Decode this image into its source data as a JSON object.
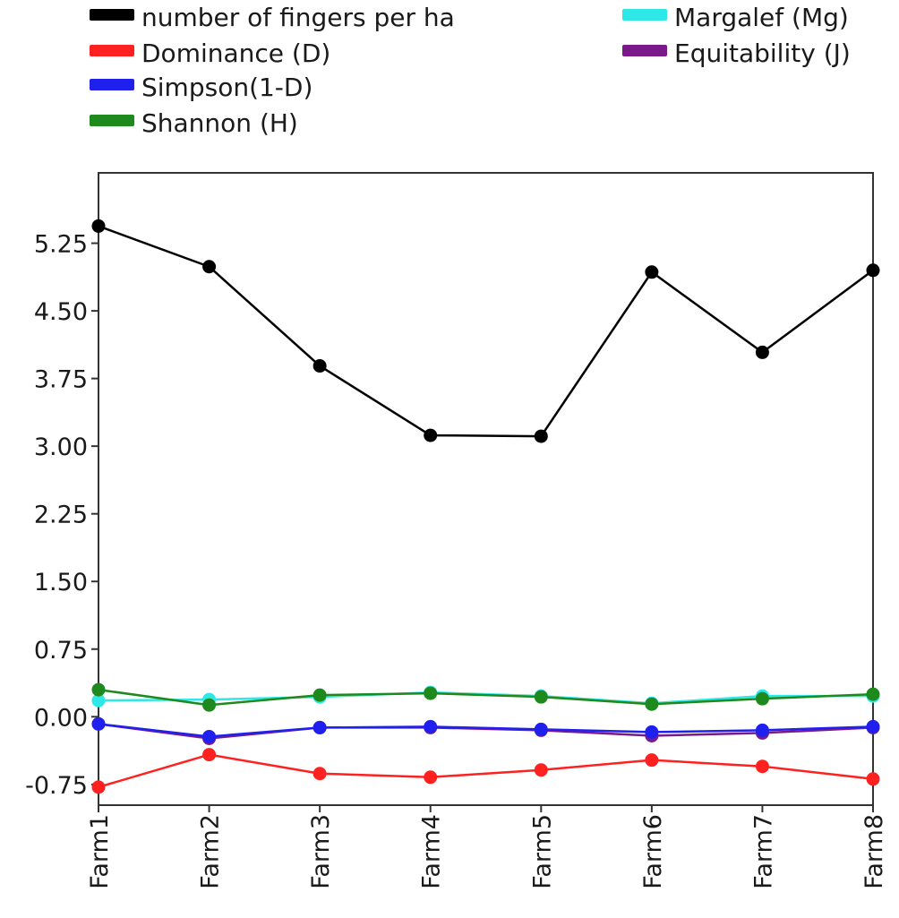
{
  "chart_data": {
    "type": "line",
    "title": "",
    "xlabel": "",
    "ylabel": "",
    "categories": [
      "Farm1",
      "Farm2",
      "Farm3",
      "Farm4",
      "Farm5",
      "Farm6",
      "Farm7",
      "Farm8"
    ],
    "ylim": [
      -0.98,
      6.03
    ],
    "yticks": [
      "5.25",
      "4.50",
      "3.75",
      "3.00",
      "2.25",
      "1.50",
      "0.75",
      "0.00",
      "-0.75"
    ],
    "grid": false,
    "legend_position": "top",
    "series": [
      {
        "name": "number of fingers per ha",
        "color": "#000000",
        "values": [
          5.44,
          4.99,
          3.89,
          3.12,
          3.11,
          4.93,
          4.04,
          4.95
        ]
      },
      {
        "name": "Dominance (D)",
        "color": "#ff2020",
        "values": [
          -0.78,
          -0.42,
          -0.63,
          -0.67,
          -0.59,
          -0.48,
          -0.55,
          -0.69
        ]
      },
      {
        "name": "Simpson(1-D)",
        "color": "#2020ee",
        "values": [
          -0.08,
          -0.22,
          -0.12,
          -0.11,
          -0.14,
          -0.17,
          -0.15,
          -0.11
        ]
      },
      {
        "name": "Shannon (H)",
        "color": "#1e8a1e",
        "values": [
          0.3,
          0.13,
          0.24,
          0.26,
          0.22,
          0.14,
          0.2,
          0.25
        ]
      },
      {
        "name": "Margalef (Mg)",
        "color": "#2ee8e8",
        "values": [
          0.18,
          0.19,
          0.22,
          0.27,
          0.23,
          0.15,
          0.23,
          0.23
        ]
      },
      {
        "name": "Equitability (J)",
        "color": "#7a1a8a",
        "values": [
          -0.08,
          -0.24,
          -0.12,
          -0.12,
          -0.15,
          -0.21,
          -0.18,
          -0.12
        ]
      }
    ]
  }
}
